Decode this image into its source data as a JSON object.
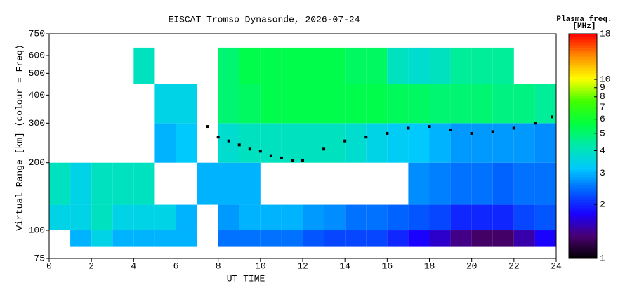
{
  "chart_data": {
    "type": "heatmap",
    "title": "EISCAT Tromso Dynasonde, 2026-07-24",
    "x_label": "UT TIME",
    "y_label": "Virtual Range [km] (colour = Freq)",
    "colorbar_title": "Plasma freq.",
    "colorbar_unit": "[MHz]",
    "xlim": [
      0,
      24
    ],
    "xticks": [
      0,
      2,
      4,
      6,
      8,
      10,
      12,
      14,
      16,
      18,
      20,
      22,
      24
    ],
    "ylim": [
      75,
      750
    ],
    "yticks": [
      75,
      100,
      200,
      300,
      400,
      500,
      600,
      750
    ],
    "log_y": true,
    "clim": [
      1,
      18
    ],
    "cticks": [
      1,
      2,
      3,
      4,
      5,
      6,
      7,
      8,
      9,
      10,
      18
    ],
    "log_color": true,
    "colormap": [
      "#000000",
      "#4a0070",
      "#1a00ff",
      "#0060ff",
      "#00c8ff",
      "#00e8b0",
      "#00ff40",
      "#40ff00",
      "#ffff00",
      "#ff9000",
      "#ff0000"
    ],
    "bins": [
      0,
      1,
      2,
      3,
      4,
      5,
      6,
      7,
      8,
      9,
      10,
      11,
      12,
      13,
      14,
      15,
      16,
      17,
      18,
      19,
      20,
      21,
      22,
      23,
      24
    ],
    "range_bins": [
      85,
      100,
      130,
      200,
      300,
      450,
      650
    ],
    "values": [
      [
        null,
        3,
        3.5,
        3,
        3,
        3,
        3,
        null,
        2.5,
        2.5,
        2.5,
        2.5,
        2.3,
        2.2,
        2.2,
        2.2,
        2,
        1.8,
        1.6,
        1.4,
        1.3,
        1.3,
        1.5,
        1.8
      ],
      [
        3.5,
        3.5,
        4,
        3.5,
        3.5,
        3.5,
        3,
        null,
        2.8,
        3,
        3,
        3,
        2.8,
        2.7,
        2.5,
        2.5,
        2.4,
        2.3,
        2.2,
        2,
        2,
        2,
        2.2,
        2.3
      ],
      [
        4,
        3.5,
        4,
        4,
        4,
        null,
        null,
        3,
        3,
        3,
        null,
        null,
        null,
        null,
        null,
        null,
        null,
        2.7,
        2.6,
        2.5,
        2.5,
        2.4,
        2.5,
        2.5
      ],
      [
        null,
        null,
        null,
        null,
        null,
        3,
        3.2,
        null,
        3.8,
        4,
        4,
        4,
        4,
        4,
        3.8,
        3.5,
        3.3,
        3.2,
        3,
        2.8,
        2.8,
        2.8,
        2.8,
        2.7
      ],
      [
        null,
        null,
        null,
        null,
        null,
        3.5,
        3.5,
        null,
        5,
        5.2,
        5.5,
        5.5,
        5.5,
        5.5,
        5.5,
        5.5,
        5.3,
        5.2,
        5,
        5,
        5,
        4.8,
        4.8,
        4.5
      ],
      [
        null,
        null,
        null,
        null,
        4,
        null,
        null,
        null,
        5,
        5.5,
        5.5,
        5.5,
        5.5,
        5.5,
        5.2,
        5.2,
        4,
        3.8,
        4,
        4.5,
        4.5,
        4.5,
        null,
        null
      ]
    ],
    "trace": {
      "color": "#000000",
      "x": [
        7.5,
        8,
        8.5,
        9,
        9.5,
        10,
        10.5,
        11,
        11.5,
        12,
        13,
        14,
        15,
        16,
        17,
        18,
        19,
        20,
        21,
        22,
        23,
        23.8
      ],
      "y": [
        290,
        260,
        250,
        240,
        230,
        225,
        215,
        210,
        205,
        205,
        230,
        250,
        260,
        270,
        285,
        290,
        280,
        270,
        275,
        285,
        300,
        320
      ]
    }
  }
}
